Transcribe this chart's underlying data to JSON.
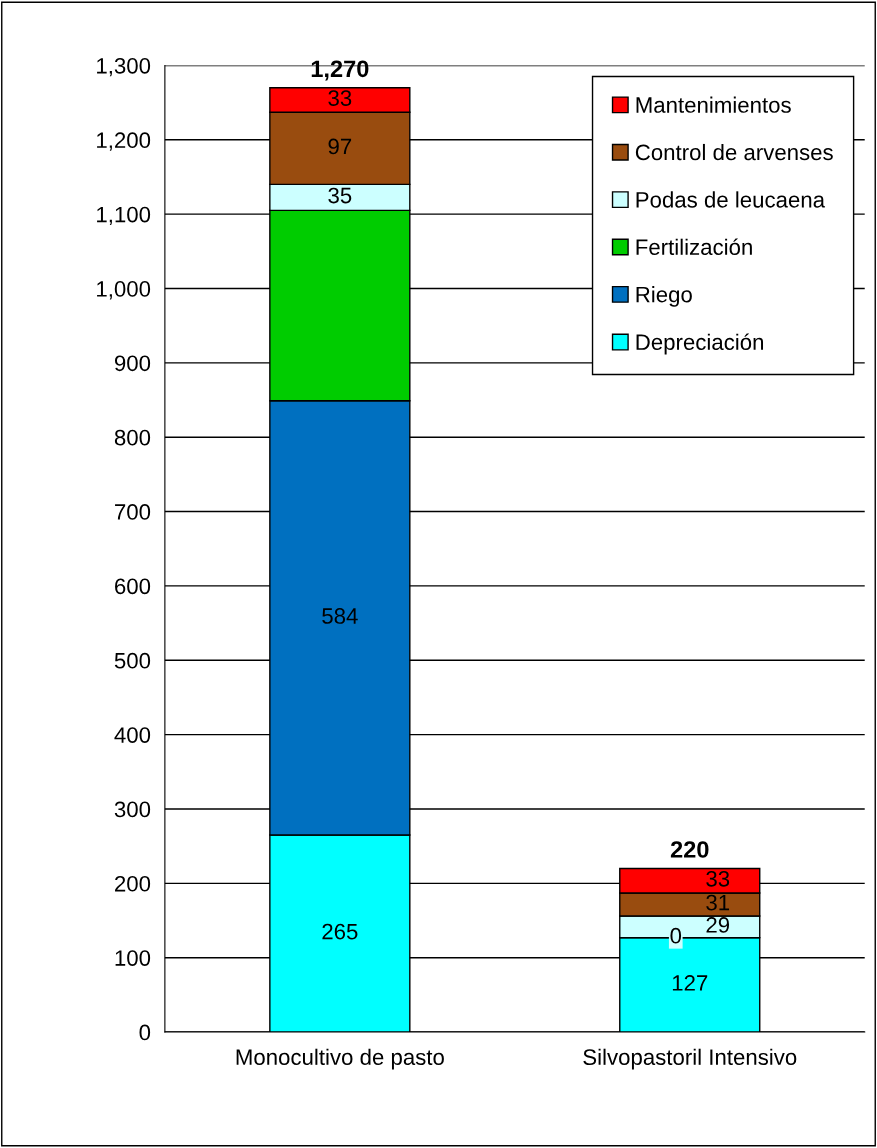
{
  "chart_data": {
    "type": "bar",
    "stacked": true,
    "categories": [
      "Monocultivo de pasto",
      "Silvopastoril Intensivo"
    ],
    "series": [
      {
        "name": "Depreciación",
        "color": "#00ffff",
        "values": [
          265,
          127
        ],
        "value_labels": [
          "265",
          "127"
        ]
      },
      {
        "name": "Riego",
        "color": "#0070c0",
        "values": [
          584,
          0
        ],
        "value_labels": [
          "584",
          null
        ]
      },
      {
        "name": "Fertilización",
        "color": "#00cc00",
        "values": [
          256,
          0
        ],
        "value_labels": [
          null,
          "0"
        ]
      },
      {
        "name": "Podas de leucaena",
        "color": "#ccffff",
        "values": [
          35,
          29
        ],
        "value_labels": [
          "35",
          "29"
        ]
      },
      {
        "name": "Control de arvenses",
        "color": "#994c0f",
        "values": [
          97,
          31
        ],
        "value_labels": [
          "97",
          "31"
        ]
      },
      {
        "name": "Mantenimientos",
        "color": "#ff0000",
        "values": [
          33,
          33
        ],
        "value_labels": [
          "33",
          "33"
        ]
      }
    ],
    "totals": [
      "1,270",
      "220"
    ],
    "ylim": [
      0,
      1300
    ],
    "yticks": [
      0,
      {
        "value": 100,
        "label": "100"
      },
      200,
      300,
      400,
      500,
      600,
      700,
      800,
      900,
      {
        "value": 1000,
        "label": "1,000"
      },
      {
        "value": 1100,
        "label": "1,100"
      },
      {
        "value": 1200,
        "label": "1,200"
      },
      {
        "value": 1300,
        "label": "1,300"
      }
    ],
    "grid": "y",
    "legend": "top right"
  }
}
